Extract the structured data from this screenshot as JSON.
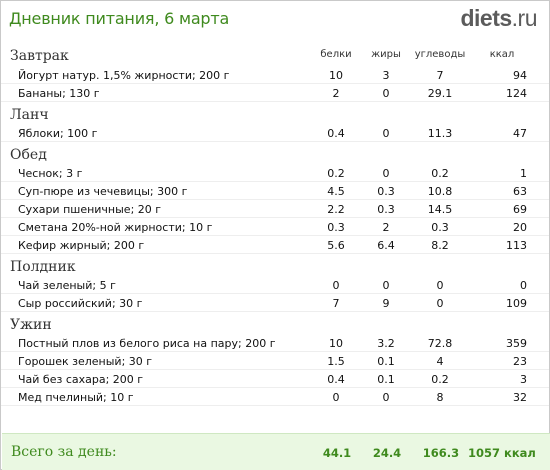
{
  "header": {
    "title": "Дневник питания, 6 марта",
    "logo_main": "diets",
    "logo_tld": ".ru"
  },
  "columns": {
    "protein": "белки",
    "fat": "жиры",
    "carbs": "углеводы",
    "kcal": "ккал"
  },
  "meals": [
    {
      "name": "Завтрак",
      "items": [
        {
          "name": "Йогурт натур. 1,5% жирности; 200 г",
          "protein": "10",
          "fat": "3",
          "carbs": "7",
          "kcal": "94"
        },
        {
          "name": "Бананы; 130 г",
          "protein": "2",
          "fat": "0",
          "carbs": "29.1",
          "kcal": "124"
        }
      ]
    },
    {
      "name": "Ланч",
      "items": [
        {
          "name": "Яблоки; 100 г",
          "protein": "0.4",
          "fat": "0",
          "carbs": "11.3",
          "kcal": "47"
        }
      ]
    },
    {
      "name": "Обед",
      "items": [
        {
          "name": "Чеснок; 3 г",
          "protein": "0.2",
          "fat": "0",
          "carbs": "0.2",
          "kcal": "1"
        },
        {
          "name": "Суп-пюре из чечевицы; 300 г",
          "protein": "4.5",
          "fat": "0.3",
          "carbs": "10.8",
          "kcal": "63"
        },
        {
          "name": "Сухари пшеничные; 20 г",
          "protein": "2.2",
          "fat": "0.3",
          "carbs": "14.5",
          "kcal": "69"
        },
        {
          "name": "Сметана 20%-ной жирности; 10 г",
          "protein": "0.3",
          "fat": "2",
          "carbs": "0.3",
          "kcal": "20"
        },
        {
          "name": "Кефир жирный; 200 г",
          "protein": "5.6",
          "fat": "6.4",
          "carbs": "8.2",
          "kcal": "113"
        }
      ]
    },
    {
      "name": "Полдник",
      "items": [
        {
          "name": "Чай зеленый; 5 г",
          "protein": "0",
          "fat": "0",
          "carbs": "0",
          "kcal": "0"
        },
        {
          "name": "Сыр российский; 30 г",
          "protein": "7",
          "fat": "9",
          "carbs": "0",
          "kcal": "109"
        }
      ]
    },
    {
      "name": "Ужин",
      "items": [
        {
          "name": "Постный плов из белого риса на пару; 200 г",
          "protein": "10",
          "fat": "3.2",
          "carbs": "72.8",
          "kcal": "359"
        },
        {
          "name": "Горошек зеленый; 30 г",
          "protein": "1.5",
          "fat": "0.1",
          "carbs": "4",
          "kcal": "23"
        },
        {
          "name": "Чай без сахара; 200 г",
          "protein": "0.4",
          "fat": "0.1",
          "carbs": "0.2",
          "kcal": "3"
        },
        {
          "name": "Мед пчелиный; 10 г",
          "protein": "0",
          "fat": "0",
          "carbs": "8",
          "kcal": "32"
        }
      ]
    }
  ],
  "total": {
    "label": "Всего за день:",
    "protein": "44.1",
    "fat": "24.4",
    "carbs": "166.3",
    "kcal": "1057 ккал"
  }
}
